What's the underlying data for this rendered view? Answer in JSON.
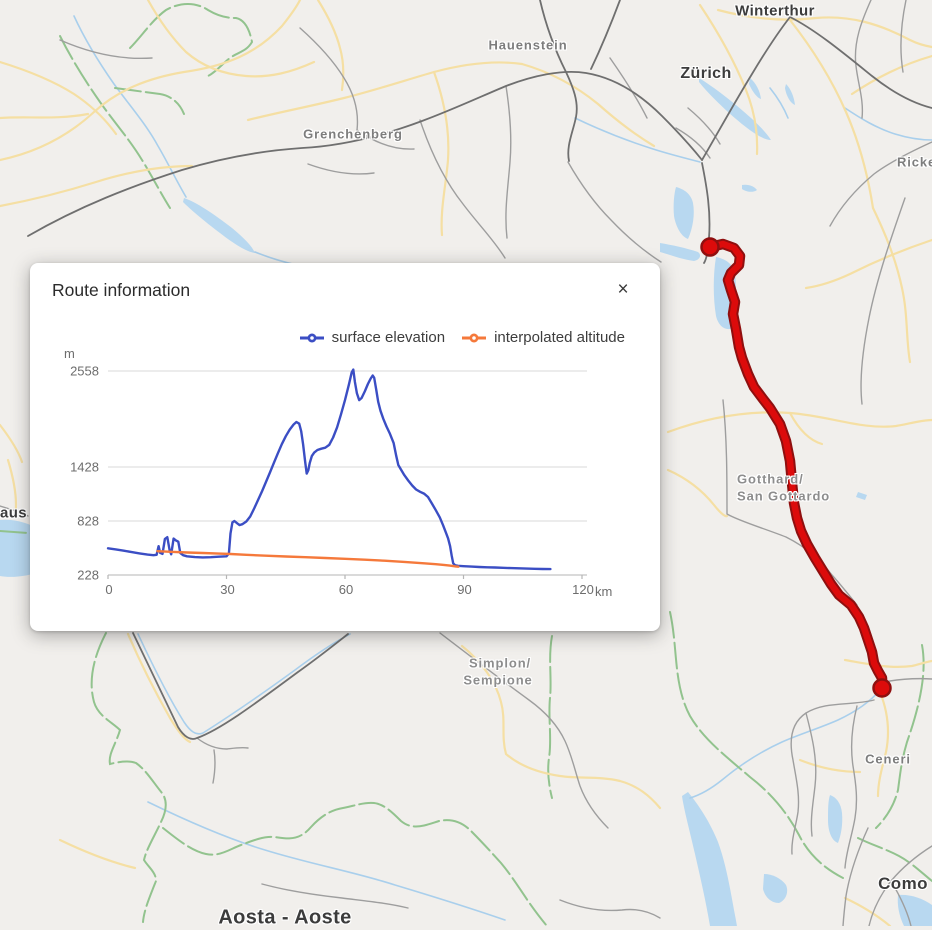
{
  "map": {
    "labels": {
      "winterthur": "Winterthur",
      "zurich": "Zürich",
      "hauenstein": "Hauenstein",
      "grenchenberg": "Grenchenberg",
      "ricken": "Ricken",
      "gotthard_line1": "Gotthard/",
      "gotthard_line2": "San Gottardo",
      "simplon_line1": "Simplon/",
      "simplon_line2": "Sempione",
      "ceneri": "Ceneri",
      "como": "Como",
      "aosta": "Aosta - Aoste",
      "lausanne_fragment": "aus"
    },
    "route_color": "#dc0b0b",
    "route_casing_color": "#8f0f0f"
  },
  "panel": {
    "title": "Route information",
    "close_label": "×"
  },
  "chart_data": {
    "type": "line",
    "title": "Route information",
    "x_axis_unit": "km",
    "y_axis_unit": "m",
    "x_range": [
      0,
      120
    ],
    "x_ticks": [
      0,
      30,
      60,
      90,
      120
    ],
    "y_ticks": [
      228,
      828,
      1428,
      2558
    ],
    "grid": true,
    "legend_position": "top-right",
    "series": [
      {
        "name": "surface elevation",
        "color": "#3b4ec4",
        "points": [
          [
            0,
            525
          ],
          [
            2,
            512
          ],
          [
            4,
            498
          ],
          [
            6,
            482
          ],
          [
            8,
            468
          ],
          [
            10,
            455
          ],
          [
            11.5,
            448
          ],
          [
            12.3,
            452
          ],
          [
            12.8,
            548
          ],
          [
            13.2,
            475
          ],
          [
            13.8,
            462
          ],
          [
            14.4,
            628
          ],
          [
            15,
            648
          ],
          [
            15.6,
            505
          ],
          [
            16,
            458
          ],
          [
            16.6,
            632
          ],
          [
            17.2,
            612
          ],
          [
            17.8,
            598
          ],
          [
            18.3,
            472
          ],
          [
            19,
            448
          ],
          [
            20,
            436
          ],
          [
            22,
            427
          ],
          [
            24,
            423
          ],
          [
            26,
            426
          ],
          [
            28,
            431
          ],
          [
            30,
            436
          ],
          [
            30.6,
            468
          ],
          [
            31,
            690
          ],
          [
            31.5,
            812
          ],
          [
            32,
            828
          ],
          [
            32.7,
            802
          ],
          [
            33.3,
            782
          ],
          [
            34,
            792
          ],
          [
            35,
            822
          ],
          [
            36,
            878
          ],
          [
            37,
            968
          ],
          [
            38,
            1062
          ],
          [
            39,
            1160
          ],
          [
            40,
            1262
          ],
          [
            41,
            1368
          ],
          [
            42,
            1478
          ],
          [
            43,
            1588
          ],
          [
            44,
            1696
          ],
          [
            45,
            1790
          ],
          [
            46,
            1868
          ],
          [
            47,
            1928
          ],
          [
            47.7,
            1958
          ],
          [
            48.4,
            1938
          ],
          [
            48.9,
            1848
          ],
          [
            49.4,
            1695
          ],
          [
            49.9,
            1495
          ],
          [
            50.3,
            1355
          ],
          [
            50.7,
            1392
          ],
          [
            51.1,
            1478
          ],
          [
            51.6,
            1556
          ],
          [
            52.2,
            1598
          ],
          [
            53,
            1628
          ],
          [
            54,
            1643
          ],
          [
            55,
            1655
          ],
          [
            56,
            1688
          ],
          [
            57,
            1775
          ],
          [
            58,
            1895
          ],
          [
            59,
            2048
          ],
          [
            60,
            2215
          ],
          [
            61,
            2398
          ],
          [
            61.7,
            2542
          ],
          [
            62.1,
            2575
          ],
          [
            62.5,
            2430
          ],
          [
            63,
            2295
          ],
          [
            63.6,
            2215
          ],
          [
            64.2,
            2240
          ],
          [
            65,
            2318
          ],
          [
            65.8,
            2405
          ],
          [
            66.5,
            2470
          ],
          [
            67,
            2505
          ],
          [
            67.4,
            2478
          ],
          [
            67.9,
            2340
          ],
          [
            68.4,
            2195
          ],
          [
            69,
            2090
          ],
          [
            69.7,
            1995
          ],
          [
            70.5,
            1905
          ],
          [
            71.4,
            1818
          ],
          [
            72.3,
            1712
          ],
          [
            73,
            1555
          ],
          [
            73.5,
            1452
          ],
          [
            74.2,
            1398
          ],
          [
            75,
            1338
          ],
          [
            76,
            1278
          ],
          [
            77,
            1222
          ],
          [
            78,
            1178
          ],
          [
            79,
            1152
          ],
          [
            80,
            1132
          ],
          [
            81,
            1095
          ],
          [
            82,
            1022
          ],
          [
            83,
            948
          ],
          [
            84,
            868
          ],
          [
            84.8,
            782
          ],
          [
            85.5,
            705
          ],
          [
            86.1,
            635
          ],
          [
            86.6,
            548
          ],
          [
            87,
            448
          ],
          [
            87.4,
            358
          ],
          [
            87.9,
            336
          ],
          [
            88.6,
            330
          ],
          [
            90,
            326
          ],
          [
            92,
            321
          ],
          [
            94,
            317
          ],
          [
            96,
            314
          ],
          [
            98,
            311
          ],
          [
            100,
            308
          ],
          [
            102,
            305
          ],
          [
            104,
            302
          ],
          [
            106,
            299
          ],
          [
            108,
            297
          ],
          [
            110,
            295
          ],
          [
            112,
            294
          ]
        ]
      },
      {
        "name": "interpolated altitude",
        "color": "#f5793b",
        "points": [
          [
            12.5,
            492
          ],
          [
            16,
            486
          ],
          [
            20,
            478
          ],
          [
            24,
            472
          ],
          [
            28,
            466
          ],
          [
            31,
            461
          ],
          [
            35,
            452
          ],
          [
            40,
            442
          ],
          [
            45,
            434
          ],
          [
            50,
            426
          ],
          [
            55,
            417
          ],
          [
            60,
            408
          ],
          [
            65,
            398
          ],
          [
            70,
            387
          ],
          [
            75,
            374
          ],
          [
            80,
            358
          ],
          [
            83,
            348
          ],
          [
            85,
            340
          ],
          [
            86.5,
            333
          ],
          [
            88,
            324
          ],
          [
            88.7,
            320
          ]
        ]
      }
    ]
  }
}
